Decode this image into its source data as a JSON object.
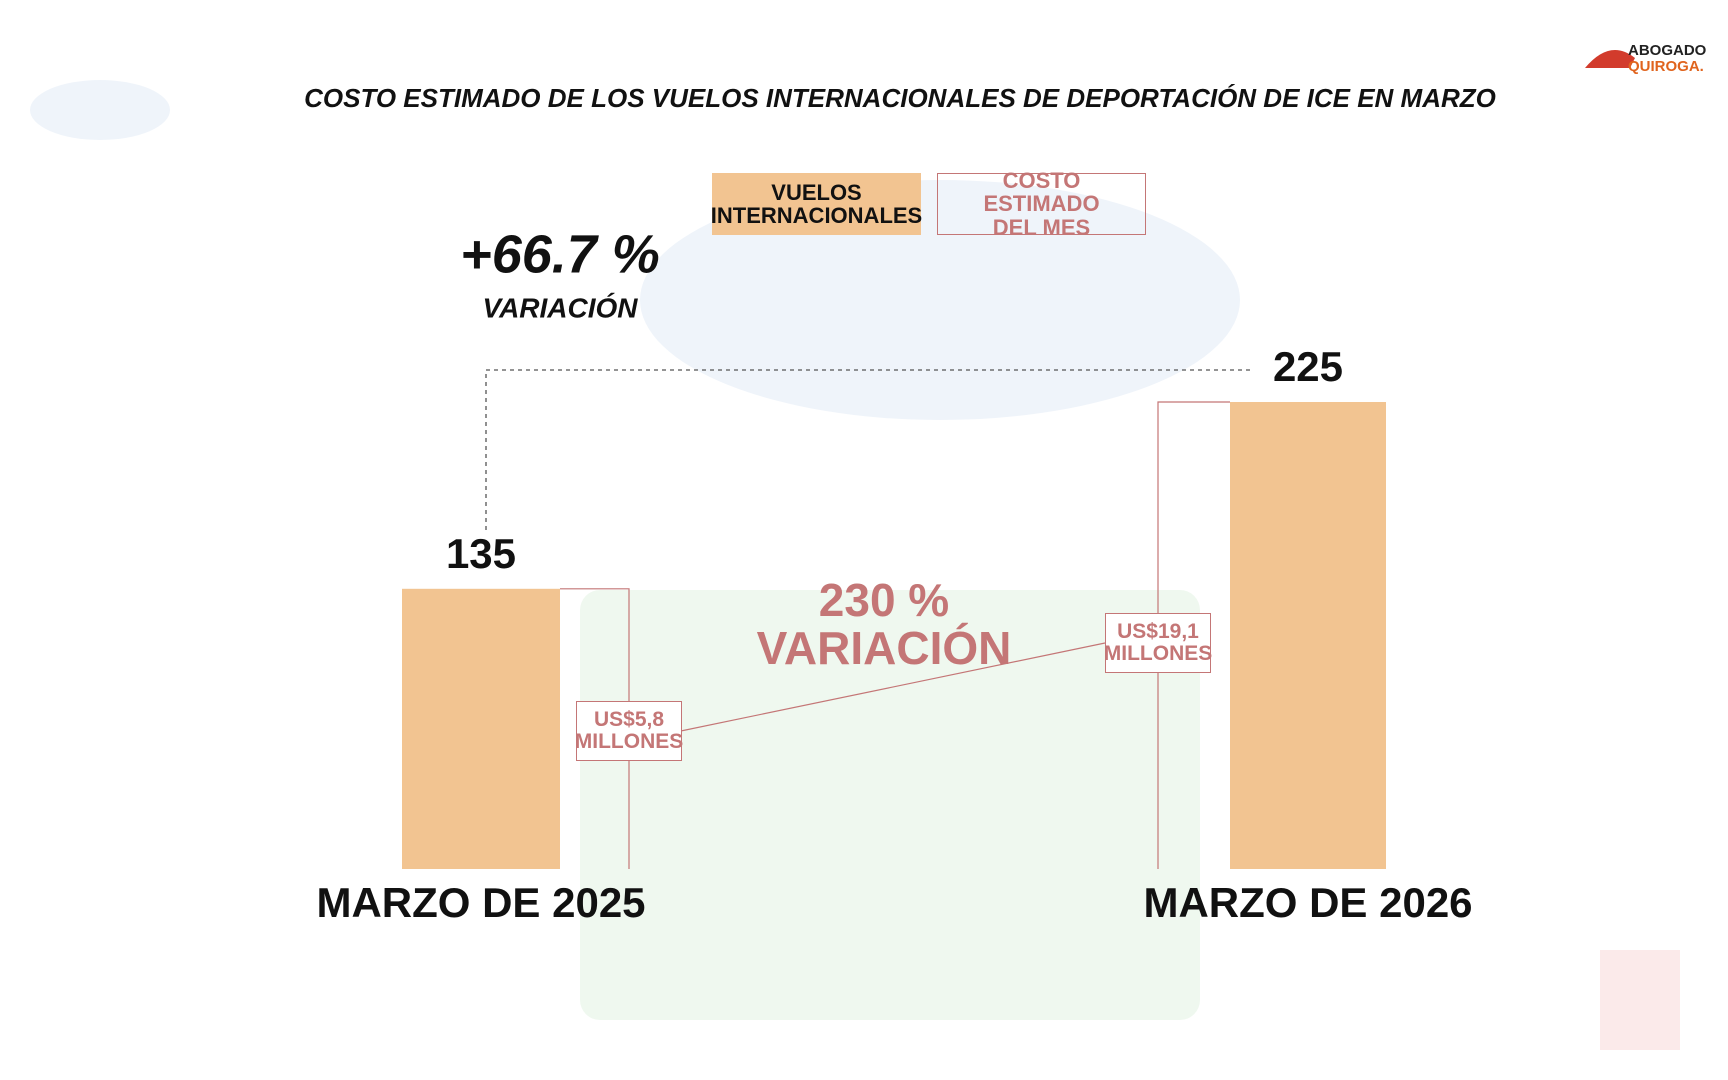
{
  "logo": [
    "ABOGADO",
    "QUIROGA."
  ],
  "chart_data": {
    "type": "bar",
    "title": "COSTO ESTIMADO DE LOS VUELOS INTERNACIONALES DE DEPORTACIÓN DE ICE EN MARZO",
    "categories": [
      "MARZO DE 2025",
      "MARZO DE 2026"
    ],
    "series": [
      {
        "name": "VUELOS INTERNACIONALES",
        "color": "#f2c491",
        "values": [
          135,
          225
        ]
      },
      {
        "name": "COSTO ESTIMADO DEL MES",
        "color": "#c47676",
        "values": [
          5.8,
          19.1
        ],
        "value_labels": [
          "US$5,8 MILLONES",
          "US$19,1 MILLONES"
        ]
      }
    ],
    "annotations": [
      {
        "text": "+66.7 %",
        "subtext": "VARIACIÓN"
      },
      {
        "text": "230 %",
        "subtext": "VARIACIÓN"
      }
    ]
  }
}
